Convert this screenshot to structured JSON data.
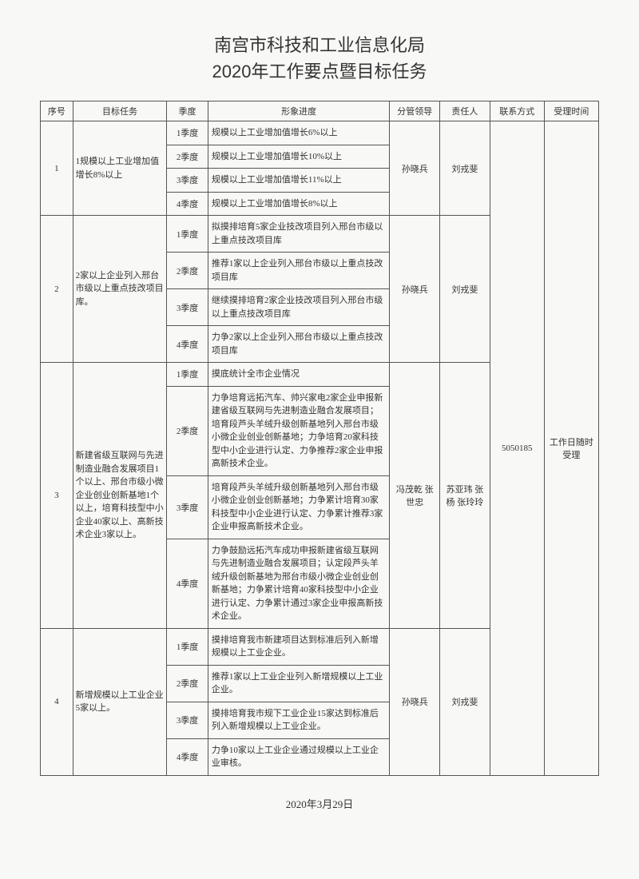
{
  "title_line1": "南宫市科技和工业信息化局",
  "title_line2": "2020年工作要点暨目标任务",
  "headers": {
    "seq": "序号",
    "task": "目标任务",
    "quarter": "季度",
    "progress": "形象进度",
    "leader": "分管领导",
    "responsible": "责任人",
    "contact": "联系方式",
    "time": "受理时间"
  },
  "contact_value": "5050185",
  "time_value": "工作日随时受理",
  "footer_date": "2020年3月29日",
  "tasks": [
    {
      "seq": "1",
      "task": "1规模以上工业增加值增长8%以上",
      "leader": "孙晓兵",
      "responsible": "刘戎斐",
      "quarters": [
        {
          "q": "1季度",
          "p": "规模以上工业增加值增长6%以上"
        },
        {
          "q": "2季度",
          "p": "规模以上工业增加值增长10%以上"
        },
        {
          "q": "3季度",
          "p": "规模以上工业增加值增长11%以上"
        },
        {
          "q": "4季度",
          "p": "规模以上工业增加值增长8%以上"
        }
      ]
    },
    {
      "seq": "2",
      "task": "2家以上企业列入邢台市级以上重点技改项目库。",
      "leader": "孙晓兵",
      "responsible": "刘戎斐",
      "quarters": [
        {
          "q": "1季度",
          "p": "拟摸排培育5家企业技改项目列入邢台市级以上重点技改项目库"
        },
        {
          "q": "2季度",
          "p": "推荐1家以上企业列入邢台市级以上重点技改项目库"
        },
        {
          "q": "3季度",
          "p": "继续摸排培育2家企业技改项目列入邢台市级以上重点技改项目库"
        },
        {
          "q": "4季度",
          "p": "力争2家以上企业列入邢台市级以上重点技改项目库"
        }
      ]
    },
    {
      "seq": "3",
      "task": "新建省级互联网与先进制造业融合发展项目1个以上、邢台市级小微企业创业创新基地1个以上，培育科技型中小企业40家以上、高新技术企业3家以上。",
      "leader": "冯茂乾 张世忠",
      "responsible": "苏亚玮 张 杨 张玲玲",
      "quarters": [
        {
          "q": "1季度",
          "p": "摸底统计全市企业情况"
        },
        {
          "q": "2季度",
          "p": "力争培育远拓汽车、帅兴家电2家企业申报新建省级互联网与先进制造业融合发展项目；培育段芦头羊绒升级创新基地列入邢台市级小微企业创业创新基地；力争培育20家科技型中小企业进行认定、力争推荐2家企业申报高新技术企业。"
        },
        {
          "q": "3季度",
          "p": "培育段芦头羊绒升级创新基地列入邢台市级小微企业创业创新基地；力争累计培育30家科技型中小企业进行认定、力争累计推荐3家企业申报高新技术企业。"
        },
        {
          "q": "4季度",
          "p": "力争鼓励远拓汽车成功申报新建省级互联网与先进制造业融合发展项目；认定段芦头羊绒升级创新基地为邢台市级小微企业创业创新基地；力争累计培育40家科技型中小企业进行认定、力争累计通过3家企业申报高新技术企业。"
        }
      ]
    },
    {
      "seq": "4",
      "task": "新增规模以上工业企业5家以上。",
      "leader": "孙晓兵",
      "responsible": "刘戎斐",
      "quarters": [
        {
          "q": "1季度",
          "p": "摸排培育我市新建项目达到标准后列入新增规模以上工业企业。"
        },
        {
          "q": "2季度",
          "p": "推荐1家以上工业企业列入新增规模以上工业企业。"
        },
        {
          "q": "3季度",
          "p": "摸排培育我市规下工业企业15家达到标准后列入新增规模以上工业企业。"
        },
        {
          "q": "4季度",
          "p": "力争10家以上工业企业通过规模以上工业企业审核。"
        }
      ]
    }
  ]
}
